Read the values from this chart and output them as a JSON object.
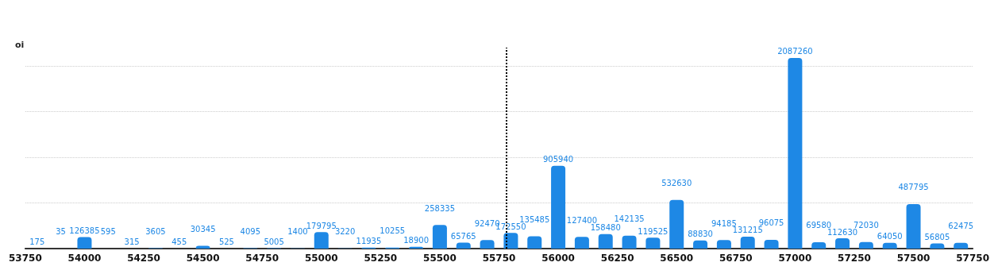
{
  "chart_data": {
    "type": "bar",
    "ylabel": "oi",
    "x": [
      53800,
      53900,
      54000,
      54100,
      54200,
      54300,
      54400,
      54500,
      54600,
      54700,
      54800,
      54900,
      55000,
      55100,
      55200,
      55300,
      55400,
      55500,
      55600,
      55700,
      55800,
      55900,
      56000,
      56100,
      56200,
      56300,
      56400,
      56500,
      56600,
      56700,
      56800,
      56900,
      57000,
      57100,
      57200,
      57300,
      57400,
      57500,
      57600,
      57700
    ],
    "values": [
      175,
      35,
      126385,
      595,
      315,
      3605,
      455,
      30345,
      525,
      4095,
      5005,
      1400,
      179795,
      3220,
      11935,
      10255,
      18900,
      258335,
      65765,
      92470,
      172550,
      135485,
      905940,
      127400,
      158480,
      142135,
      119525,
      532630,
      88830,
      94185,
      131215,
      96075,
      2087260,
      69580,
      112630,
      72030,
      64050,
      487795,
      56805,
      62475
    ],
    "color": "#1e88e5",
    "data_labels": true,
    "xlim": [
      53750,
      57750
    ],
    "xticks": [
      53750,
      54000,
      54250,
      54500,
      54750,
      55000,
      55250,
      55500,
      55750,
      56000,
      56250,
      56500,
      56750,
      57000,
      57250,
      57500,
      57750
    ],
    "ylim": [
      0,
      2200000
    ],
    "yticks": [
      {
        "value": 0,
        "label": null
      },
      {
        "value": 500000,
        "label": null
      },
      {
        "value": 1000000,
        "label": null
      },
      {
        "value": 1500000,
        "label": null
      },
      {
        "value": 2000000,
        "label": null
      }
    ],
    "tick_labels": "x",
    "grid": "y",
    "ref_lines": [
      {
        "axis": "x",
        "value": 55780,
        "label": null,
        "color": "#000000",
        "line_style": "dotted"
      }
    ]
  }
}
